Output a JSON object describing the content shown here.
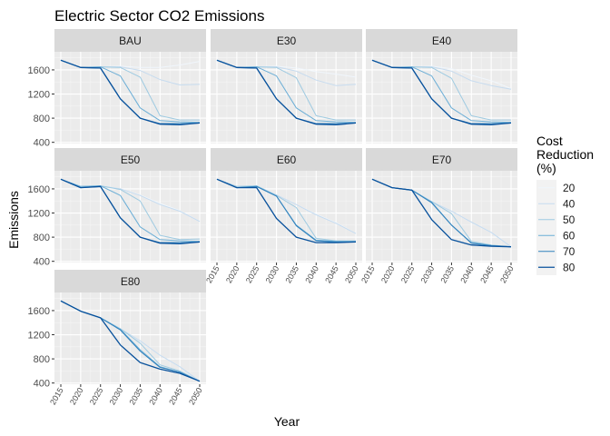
{
  "chart_data": {
    "type": "line",
    "title": "Electric Sector CO2 Emissions",
    "xlabel": "Year",
    "ylabel": "Emissions",
    "x": [
      2015,
      2020,
      2025,
      2030,
      2035,
      2040,
      2045,
      2050
    ],
    "x_tick_labels": [
      "2015",
      "2020",
      "2025",
      "2030",
      "2035",
      "2040",
      "2045",
      "2050"
    ],
    "ylim": [
      380,
      1900
    ],
    "y_ticks": [
      400,
      800,
      1200,
      1600
    ],
    "y_tick_labels": [
      "400",
      "800",
      "1200",
      "1600"
    ],
    "grid": true,
    "facet_layout": "3 columns, 3 rows",
    "legend": {
      "title": "Cost Reduction (%)",
      "position": "right",
      "entries": [
        {
          "label": "20",
          "color": "#f0f6fc"
        },
        {
          "label": "40",
          "color": "#c6dbef"
        },
        {
          "label": "50",
          "color": "#9ecae1"
        },
        {
          "label": "60",
          "color": "#6baed6"
        },
        {
          "label": "70",
          "color": "#3182bd"
        },
        {
          "label": "80",
          "color": "#08519c"
        }
      ]
    },
    "facets": [
      {
        "name": "BAU",
        "series": [
          {
            "name": "20",
            "values": [
              1760,
              1640,
              1650,
              1660,
              1640,
              1640,
              1680,
              1740
            ]
          },
          {
            "name": "40",
            "values": [
              1760,
              1640,
              1650,
              1650,
              1590,
              1440,
              1350,
              1360
            ]
          },
          {
            "name": "50",
            "values": [
              1760,
              1640,
              1650,
              1640,
              1480,
              840,
              770,
              770
            ]
          },
          {
            "name": "60",
            "values": [
              1760,
              1640,
              1650,
              1500,
              970,
              760,
              740,
              730
            ]
          },
          {
            "name": "70",
            "values": [
              1760,
              1640,
              1630,
              1120,
              800,
              710,
              710,
              720
            ]
          },
          {
            "name": "80",
            "values": [
              1760,
              1640,
              1630,
              1120,
              800,
              700,
              690,
              720
            ]
          }
        ]
      },
      {
        "name": "E30",
        "series": [
          {
            "name": "20",
            "values": [
              1760,
              1640,
              1650,
              1660,
              1630,
              1570,
              1530,
              1480
            ]
          },
          {
            "name": "40",
            "values": [
              1760,
              1640,
              1650,
              1650,
              1580,
              1430,
              1340,
              1360
            ]
          },
          {
            "name": "50",
            "values": [
              1760,
              1640,
              1650,
              1640,
              1470,
              840,
              770,
              770
            ]
          },
          {
            "name": "60",
            "values": [
              1760,
              1640,
              1650,
              1500,
              970,
              760,
              740,
              730
            ]
          },
          {
            "name": "70",
            "values": [
              1760,
              1640,
              1630,
              1120,
              800,
              710,
              710,
              720
            ]
          },
          {
            "name": "80",
            "values": [
              1760,
              1640,
              1630,
              1120,
              800,
              700,
              690,
              720
            ]
          }
        ]
      },
      {
        "name": "E40",
        "series": [
          {
            "name": "20",
            "values": [
              1760,
              1640,
              1650,
              1660,
              1620,
              1510,
              1420,
              1290
            ]
          },
          {
            "name": "40",
            "values": [
              1760,
              1640,
              1650,
              1650,
              1580,
              1420,
              1340,
              1280
            ]
          },
          {
            "name": "50",
            "values": [
              1760,
              1640,
              1650,
              1640,
              1460,
              840,
              770,
              770
            ]
          },
          {
            "name": "60",
            "values": [
              1760,
              1640,
              1650,
              1500,
              970,
              760,
              740,
              730
            ]
          },
          {
            "name": "70",
            "values": [
              1760,
              1640,
              1630,
              1120,
              800,
              710,
              710,
              720
            ]
          },
          {
            "name": "80",
            "values": [
              1760,
              1640,
              1630,
              1120,
              800,
              700,
              690,
              720
            ]
          }
        ]
      },
      {
        "name": "E50",
        "series": [
          {
            "name": "20",
            "values": [
              1760,
              1640,
              1650,
              1600,
              1500,
              1360,
              1240,
              1060
            ]
          },
          {
            "name": "40",
            "values": [
              1760,
              1640,
              1650,
              1600,
              1490,
              1340,
              1230,
              1060
            ]
          },
          {
            "name": "50",
            "values": [
              1760,
              1640,
              1650,
              1590,
              1400,
              830,
              760,
              770
            ]
          },
          {
            "name": "60",
            "values": [
              1760,
              1640,
              1650,
              1490,
              970,
              760,
              740,
              730
            ]
          },
          {
            "name": "70",
            "values": [
              1760,
              1620,
              1640,
              1120,
              800,
              710,
              710,
              720
            ]
          },
          {
            "name": "80",
            "values": [
              1760,
              1620,
              1640,
              1120,
              800,
              700,
              690,
              720
            ]
          }
        ]
      },
      {
        "name": "E60",
        "series": [
          {
            "name": "20",
            "values": [
              1760,
              1640,
              1650,
              1500,
              1340,
              1180,
              1040,
              860
            ]
          },
          {
            "name": "40",
            "values": [
              1760,
              1640,
              1650,
              1500,
              1340,
              1170,
              1030,
              860
            ]
          },
          {
            "name": "50",
            "values": [
              1760,
              1640,
              1650,
              1490,
              1290,
              780,
              740,
              740
            ]
          },
          {
            "name": "60",
            "values": [
              1760,
              1620,
              1640,
              1480,
              1000,
              750,
              730,
              730
            ]
          },
          {
            "name": "70",
            "values": [
              1760,
              1620,
              1640,
              1480,
              990,
              740,
              720,
              720
            ]
          },
          {
            "name": "80",
            "values": [
              1760,
              1620,
              1620,
              1110,
              800,
              710,
              710,
              720
            ]
          }
        ]
      },
      {
        "name": "E70",
        "series": [
          {
            "name": "20",
            "values": [
              1760,
              1620,
              1580,
              1390,
              1230,
              1050,
              880,
              640
            ]
          },
          {
            "name": "40",
            "values": [
              1760,
              1620,
              1580,
              1390,
              1230,
              1050,
              880,
              640
            ]
          },
          {
            "name": "50",
            "values": [
              1760,
              1620,
              1580,
              1390,
              1190,
              730,
              670,
              640
            ]
          },
          {
            "name": "60",
            "values": [
              1760,
              1620,
              1580,
              1380,
              1000,
              710,
              660,
              640
            ]
          },
          {
            "name": "70",
            "values": [
              1760,
              1620,
              1580,
              1370,
              1000,
              700,
              660,
              640
            ]
          },
          {
            "name": "80",
            "values": [
              1760,
              1620,
              1580,
              1090,
              760,
              670,
              650,
              640
            ]
          }
        ]
      },
      {
        "name": "E80",
        "series": [
          {
            "name": "20",
            "values": [
              1760,
              1590,
              1480,
              1300,
              1100,
              860,
              670,
              430
            ]
          },
          {
            "name": "40",
            "values": [
              1760,
              1590,
              1480,
              1300,
              1100,
              860,
              670,
              430
            ]
          },
          {
            "name": "50",
            "values": [
              1760,
              1590,
              1480,
              1300,
              1060,
              700,
              600,
              430
            ]
          },
          {
            "name": "60",
            "values": [
              1760,
              1590,
              1480,
              1290,
              950,
              670,
              580,
              430
            ]
          },
          {
            "name": "70",
            "values": [
              1760,
              1590,
              1480,
              1280,
              930,
              660,
              580,
              430
            ]
          },
          {
            "name": "80",
            "values": [
              1760,
              1590,
              1480,
              1030,
              740,
              630,
              560,
              430
            ]
          }
        ]
      }
    ]
  }
}
